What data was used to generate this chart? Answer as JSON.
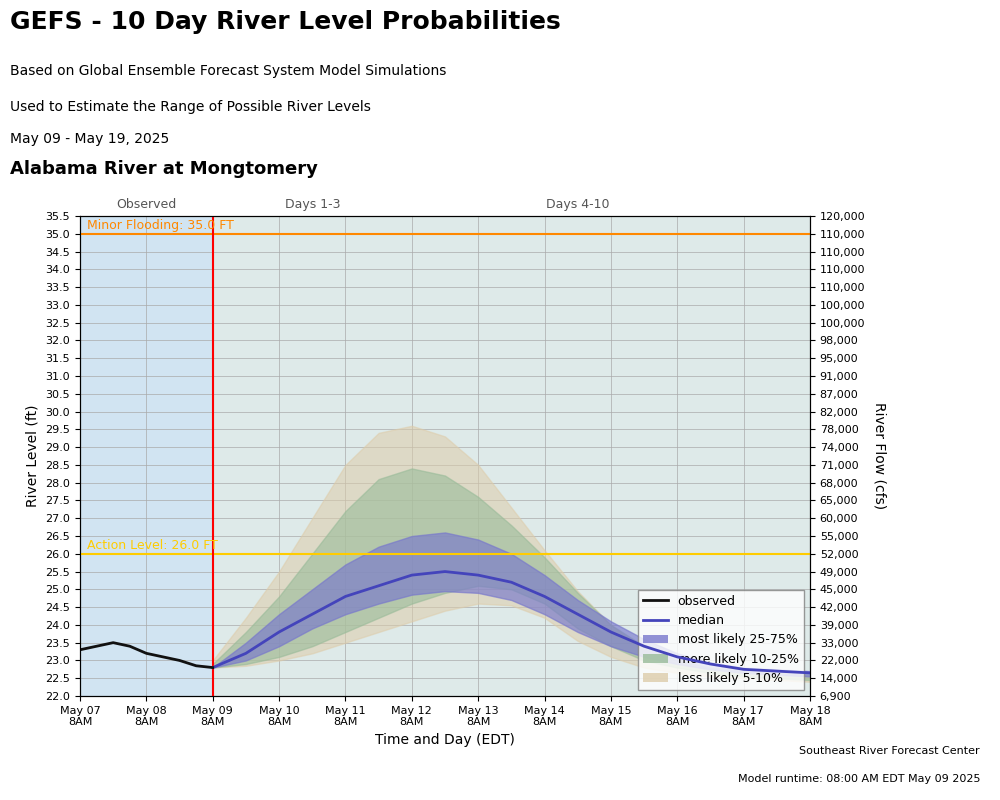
{
  "title_main": "GEFS - 10 Day River Level Probabilities",
  "subtitle1": "Based on Global Ensemble Forecast System Model Simulations",
  "subtitle2": "Used to Estimate the Range of Possible River Levels",
  "date_range": "May 09 - May 19, 2025",
  "location": "Alabama River at Mongtomery",
  "xlabel": "Time and Day (EDT)",
  "ylabel_left": "River Level (ft)",
  "ylabel_right": "River Flow (cfs)",
  "minor_flood_level": 35.0,
  "minor_flood_label": "Minor Flooding: 35.0 FT",
  "action_level": 26.0,
  "action_label": "Action Level: 26.0 FT",
  "ylim_left": [
    22.0,
    35.5
  ],
  "header_bg": "#d8d4a8",
  "observed_section_bg": "#cce0f0",
  "forecast_section_bg": "#e0e8e0",
  "grid_color": "#aaaaaa",
  "model_runtime": "Model runtime: 08:00 AM EDT May 09 2025",
  "footer": "Southeast River Forecast Center",
  "xtick_labels": [
    "May 07\n8AM",
    "May 08\n8AM",
    "May 09\n8AM",
    "May 10\n8AM",
    "May 11\n8AM",
    "May 12\n8AM",
    "May 13\n8AM",
    "May 14\n8AM",
    "May 15\n8AM",
    "May 16\n8AM",
    "May 17\n8AM",
    "May 18\n8AM"
  ],
  "xtick_positions": [
    0,
    1,
    2,
    3,
    4,
    5,
    6,
    7,
    8,
    9,
    10,
    11
  ],
  "right_ytick_labels": [
    "6,900",
    "14,000",
    "22,000",
    "33,000",
    "39,000",
    "42,000",
    "45,000",
    "49,000",
    "52,000",
    "55,000",
    "60,000",
    "65,000",
    "68,000",
    "71,000",
    "74,000",
    "78,000",
    "82,000",
    "87,000",
    "91,000",
    "95,000",
    "98,000",
    "100,000",
    "100,000",
    "110,000",
    "110,000",
    "110,000",
    "110,000",
    "120,000"
  ],
  "observed_x": [
    0,
    0.25,
    0.5,
    0.75,
    1.0,
    1.25,
    1.5,
    1.75,
    2.0
  ],
  "observed_y": [
    23.3,
    23.4,
    23.5,
    23.4,
    23.2,
    23.1,
    23.0,
    22.85,
    22.8
  ],
  "median_x": [
    2.0,
    2.5,
    3.0,
    3.5,
    4.0,
    4.5,
    5.0,
    5.5,
    6.0,
    6.5,
    7.0,
    7.5,
    8.0,
    8.5,
    9.0,
    9.5,
    10.0,
    10.5,
    11.0
  ],
  "median_y": [
    22.8,
    23.2,
    23.8,
    24.3,
    24.8,
    25.1,
    25.4,
    25.5,
    25.4,
    25.2,
    24.8,
    24.3,
    23.8,
    23.4,
    23.1,
    22.9,
    22.75,
    22.7,
    22.65
  ],
  "p25_y": [
    22.8,
    23.0,
    23.4,
    23.9,
    24.3,
    24.6,
    24.85,
    24.95,
    24.9,
    24.7,
    24.3,
    23.8,
    23.4,
    23.1,
    22.9,
    22.75,
    22.65,
    22.6,
    22.55
  ],
  "p75_y": [
    22.8,
    23.5,
    24.3,
    25.0,
    25.7,
    26.2,
    26.5,
    26.6,
    26.4,
    26.0,
    25.4,
    24.7,
    24.1,
    23.6,
    23.2,
    22.95,
    22.8,
    22.75,
    22.7
  ],
  "p10_y": [
    22.8,
    22.9,
    23.1,
    23.4,
    23.8,
    24.2,
    24.6,
    24.9,
    25.1,
    25.0,
    24.6,
    23.9,
    23.4,
    23.0,
    22.8,
    22.65,
    22.55,
    22.5,
    22.45
  ],
  "p90_y": [
    22.9,
    23.8,
    24.8,
    26.0,
    27.2,
    28.1,
    28.4,
    28.2,
    27.6,
    26.8,
    25.9,
    24.9,
    24.0,
    23.4,
    23.0,
    22.8,
    22.7,
    22.65,
    22.6
  ],
  "p05_y": [
    22.8,
    22.85,
    23.0,
    23.2,
    23.5,
    23.8,
    24.1,
    24.4,
    24.6,
    24.55,
    24.2,
    23.55,
    23.1,
    22.8,
    22.65,
    22.55,
    22.5,
    22.45,
    22.4
  ],
  "p95_y": [
    23.0,
    24.2,
    25.5,
    27.0,
    28.5,
    29.4,
    29.6,
    29.3,
    28.5,
    27.3,
    26.1,
    24.95,
    24.0,
    23.3,
    22.9,
    22.75,
    22.65,
    22.6,
    22.55
  ],
  "ensemble_x": [
    2.0,
    2.5,
    3.0,
    3.5,
    4.0,
    4.5,
    5.0,
    5.5,
    6.0,
    6.5,
    7.0,
    7.5,
    8.0,
    8.5,
    9.0,
    9.5,
    10.0,
    10.5,
    11.0
  ],
  "observed_divider": 2.0,
  "color_25_75": "#7777cc",
  "color_10_25": "#99bb99",
  "color_5_10": "#ddccaa",
  "color_median": "#4444bb",
  "color_observed": "#111111",
  "color_minor_flood": "#ff8800",
  "color_action": "#ffcc00"
}
